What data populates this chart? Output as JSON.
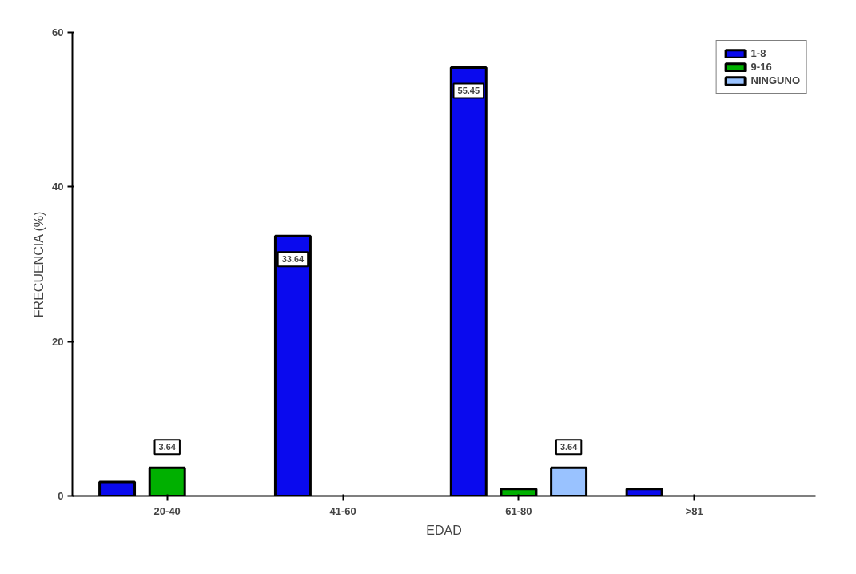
{
  "chart_data": {
    "type": "bar",
    "xlabel": "EDAD",
    "ylabel": "FRECUENCIA (%)",
    "categories": [
      "20-40",
      "41-60",
      "61-80",
      ">81"
    ],
    "series": [
      {
        "name": "1-8",
        "color": "#0a0aee",
        "values": [
          1.8,
          33.64,
          55.45,
          0.9
        ],
        "value_labels": [
          null,
          "33.64",
          "55.45",
          null
        ]
      },
      {
        "name": "9-16",
        "color": "#00b000",
        "values": [
          3.64,
          null,
          0.9,
          null
        ],
        "value_labels": [
          "3.64",
          null,
          null,
          null
        ]
      },
      {
        "name": "NINGUNO",
        "color": "#99c2ff",
        "values": [
          null,
          null,
          3.64,
          null
        ],
        "value_labels": [
          null,
          null,
          "3.64",
          null
        ]
      }
    ],
    "ylim": [
      0,
      60
    ],
    "yticks": [
      0,
      20,
      40,
      60
    ],
    "grid": false,
    "legend": "top right"
  }
}
